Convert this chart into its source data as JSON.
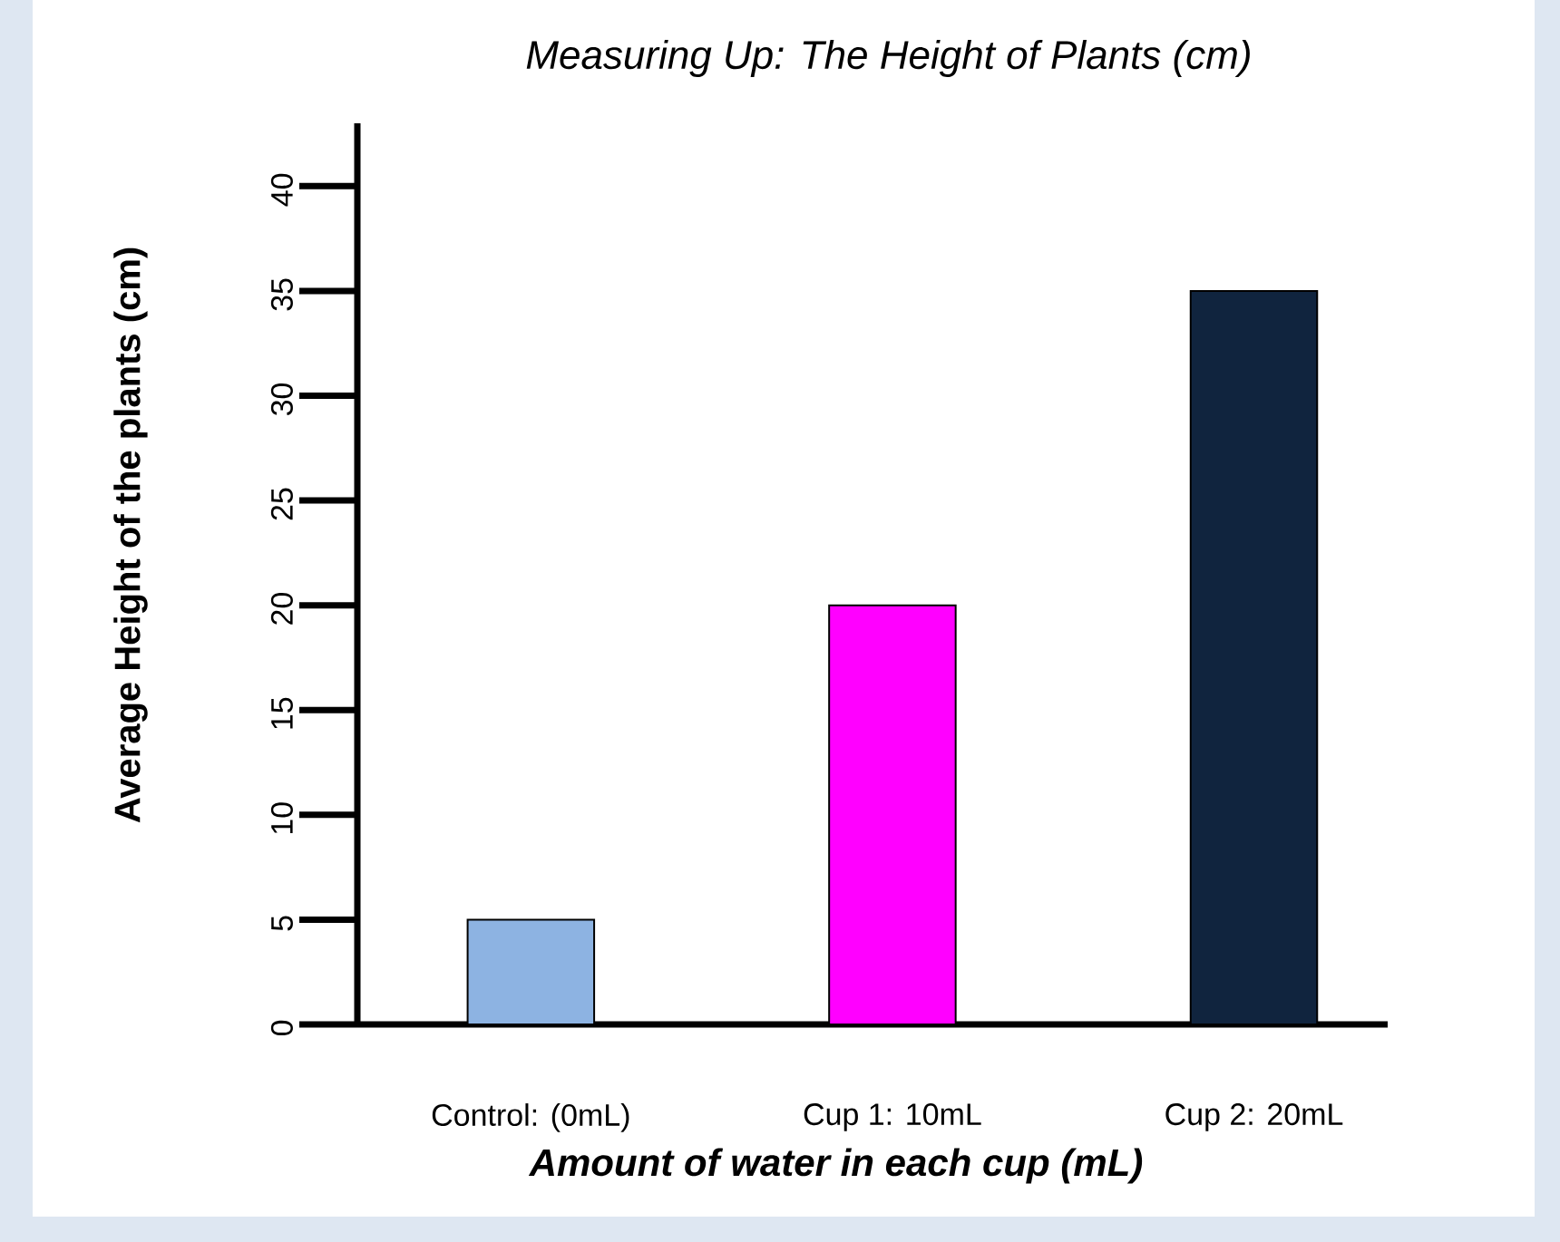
{
  "chart_data": {
    "type": "bar",
    "title": "Measuring Up: The Height of Plants (cm)",
    "xlabel": "Amount of water in each cup (mL)",
    "ylabel": "Average Height of the plants (cm)",
    "categories": [
      "Control: (0mL)",
      "Cup 1: 10mL",
      "Cup 2: 20mL"
    ],
    "values": [
      5,
      20,
      35
    ],
    "colors": [
      "#8db3e2",
      "#ff00ff",
      "#10243e"
    ],
    "ylim": [
      0,
      43
    ],
    "yticks": [
      0,
      5,
      10,
      15,
      20,
      25,
      30,
      35,
      40
    ],
    "grid": false
  }
}
